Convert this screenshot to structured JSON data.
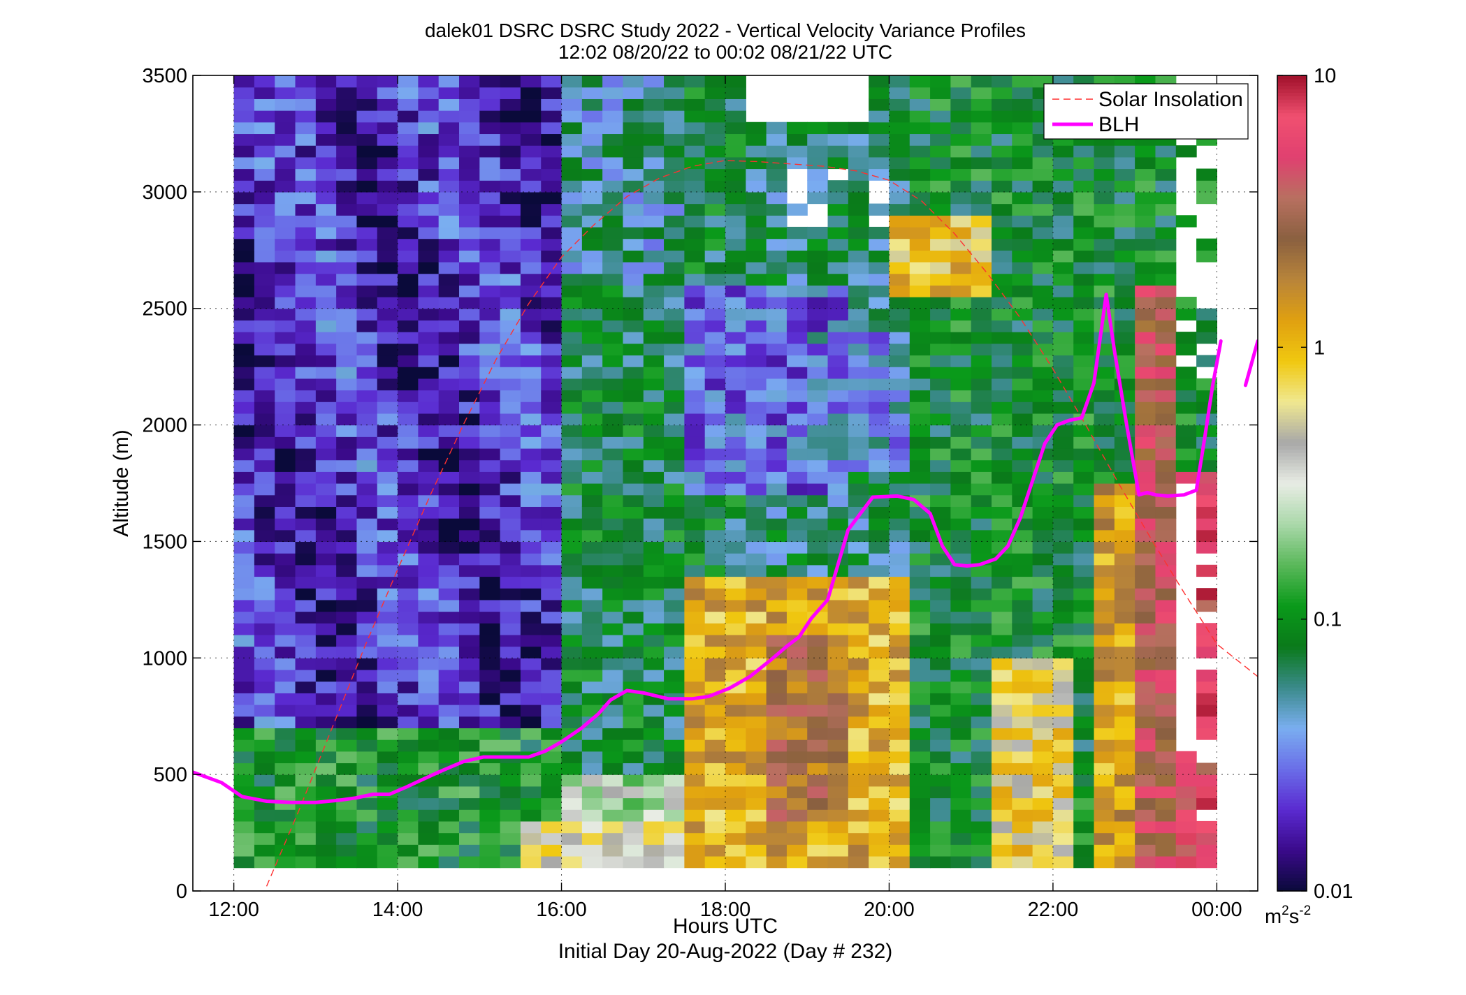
{
  "figure": {
    "title_line1": "dalek01 DSRC DSRC Study 2022 - Vertical Velocity Variance Profiles",
    "title_line2": "12:02 08/20/22 to 00:02 08/21/22  UTC",
    "footer": "Initial Day 20-Aug-2022 (Day # 232)"
  },
  "chart_data": {
    "type": "heatmap",
    "title": "dalek01 DSRC DSRC Study 2022 - Vertical Velocity Variance Profiles",
    "subtitle": "12:02 08/20/22 to 00:02 08/21/22  UTC",
    "xlabel": "Hours UTC",
    "ylabel": "Altitude (m)",
    "x_unit": "hours UTC (24 = 00:00 next day)",
    "xlim": [
      11.5,
      24.5
    ],
    "ylim": [
      0,
      3500
    ],
    "xticks": [
      12,
      14,
      16,
      18,
      20,
      22,
      24
    ],
    "xtick_labels": [
      "12:00",
      "14:00",
      "16:00",
      "18:00",
      "20:00",
      "22:00",
      "00:00"
    ],
    "yticks": [
      0,
      500,
      1000,
      1500,
      2000,
      2500,
      3000,
      3500
    ],
    "ytick_labels": [
      "0",
      "500",
      "1000",
      "1500",
      "2000",
      "2500",
      "3000",
      "3500"
    ],
    "grid": true,
    "colorbar": {
      "scale": "log",
      "range": [
        0.01,
        10
      ],
      "ticks": [
        0.01,
        0.1,
        1,
        10
      ],
      "tick_labels": [
        "0.01",
        "0.1",
        "1",
        "10"
      ],
      "unit_base": "m",
      "unit_exp1": "2",
      "unit_mid": "s",
      "unit_exp2": "-2",
      "colors": [
        "#0a0a3a",
        "#3a0a8a",
        "#5a2ad0",
        "#6a6ee8",
        "#7aaef0",
        "#3a8a8a",
        "#0a7a1a",
        "#0a9a1a",
        "#5ab85a",
        "#aad8aa",
        "#e8ece4",
        "#a8a8a8",
        "#f0e890",
        "#f0c810",
        "#e0a010",
        "#b8843a",
        "#8a6040",
        "#b87060",
        "#e04070",
        "#f05070",
        "#a0102a"
      ]
    },
    "regimes": [
      {
        "x": [
          12.0,
          16.0
        ],
        "y": [
          100,
          3500
        ],
        "value": 0.02,
        "note": "purple/blue"
      },
      {
        "x": [
          16.0,
          18.3
        ],
        "y": [
          600,
          3500
        ],
        "value": 0.09,
        "note": "green"
      },
      {
        "x": [
          17.8,
          20.0
        ],
        "y": [
          100,
          1350
        ],
        "value": 1.0,
        "note": "yellow/orange core"
      },
      {
        "x": [
          20.0,
          21.3
        ],
        "y": [
          2550,
          2900
        ],
        "value": 0.8,
        "note": "yellow patch"
      },
      {
        "x": [
          21.3,
          22.3
        ],
        "y": [
          100,
          1000
        ],
        "value": 0.8,
        "note": "yellow patch"
      },
      {
        "x": [
          23.0,
          24.1
        ],
        "y": [
          100,
          2600
        ],
        "value": 3.0,
        "note": "brown/pink"
      }
    ],
    "series": [
      {
        "name": "Solar Insolation",
        "style": "dashed",
        "color": "#ff3030",
        "x": [
          12.4,
          12.8,
          13.2,
          13.6,
          14.0,
          14.4,
          14.8,
          15.2,
          15.6,
          16.0,
          16.4,
          16.8,
          17.2,
          17.6,
          18.0,
          18.4,
          18.8,
          19.2,
          19.6,
          20.0,
          20.4,
          20.8,
          21.2,
          21.6,
          22.0,
          22.4,
          22.8,
          23.2,
          23.6,
          24.0,
          24.5
        ],
        "y": [
          20,
          350,
          700,
          1050,
          1380,
          1700,
          2000,
          2280,
          2520,
          2720,
          2860,
          2980,
          3060,
          3110,
          3135,
          3130,
          3120,
          3110,
          3090,
          3050,
          2960,
          2820,
          2650,
          2460,
          2240,
          2000,
          1750,
          1510,
          1280,
          1060,
          920
        ]
      },
      {
        "name": "BLH",
        "style": "solid",
        "color": "#ff00ff",
        "segments": [
          {
            "x": [
              11.5,
              11.85,
              12.1,
              12.4,
              12.7,
              13.0,
              13.3,
              13.5,
              13.7,
              13.9,
              14.1,
              14.25,
              14.5,
              14.8,
              15.05,
              15.3,
              15.6,
              15.8,
              16.0,
              16.25,
              16.45,
              16.6,
              16.8,
              17.0,
              17.3,
              17.6,
              17.8,
              18.05,
              18.3,
              18.55,
              18.75,
              18.9,
              19.05,
              19.25,
              19.5,
              19.8,
              20.1,
              20.3,
              20.5,
              20.65,
              20.8,
              20.95,
              21.1,
              21.3,
              21.45,
              21.6,
              21.75,
              21.9,
              22.05,
              22.2,
              22.35,
              22.5,
              22.65,
              22.75,
              22.9,
              23.05,
              23.15,
              23.25,
              23.4,
              23.6,
              23.75,
              23.85,
              23.95,
              24.05
            ],
            "y": [
              510,
              465,
              405,
              385,
              380,
              380,
              390,
              400,
              415,
              415,
              445,
              470,
              510,
              555,
              575,
              575,
              575,
              600,
              640,
              700,
              760,
              820,
              860,
              850,
              825,
              825,
              835,
              870,
              920,
              990,
              1050,
              1090,
              1170,
              1250,
              1550,
              1690,
              1695,
              1680,
              1620,
              1480,
              1400,
              1395,
              1400,
              1425,
              1480,
              1600,
              1760,
              1920,
              2000,
              2020,
              2030,
              2180,
              2560,
              2320,
              2000,
              1700,
              1710,
              1700,
              1695,
              1700,
              1720,
              1940,
              2170,
              2360
            ]
          },
          {
            "x": [
              24.35,
              24.5
            ],
            "y": [
              2170,
              2360
            ]
          }
        ]
      }
    ],
    "legend": {
      "placement": "top-right",
      "items": [
        "Solar Insolation",
        "BLH"
      ]
    }
  }
}
